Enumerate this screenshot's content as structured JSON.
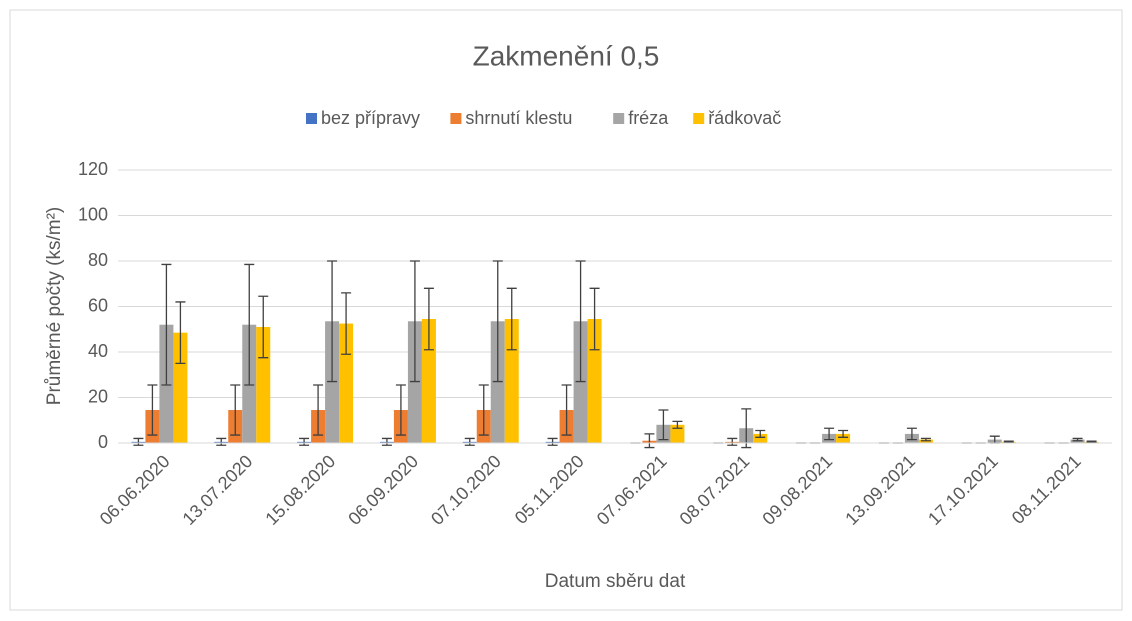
{
  "chart_data": {
    "type": "bar",
    "title": "Zakmenění 0,5",
    "x_label": "Datum sběru dat",
    "y_label": "Průměrné počty (ks/m²)",
    "categories": [
      "06.06.2020",
      "13.07.2020",
      "15.08.2020",
      "06.09.2020",
      "07.10.2020",
      "05.11.2020",
      "07.06.2021",
      "08.07.2021",
      "09.08.2021",
      "13.09.2021",
      "17.10.2021",
      "08.11.2021"
    ],
    "series": [
      {
        "name": "bez přípravy",
        "color": "#4472c4",
        "values": [
          0.5,
          0.5,
          0.5,
          0.5,
          0.5,
          0.5,
          0,
          0,
          0,
          0,
          0,
          0
        ],
        "errors": [
          1.5,
          1.5,
          1.5,
          1.5,
          1.5,
          1.5,
          0,
          0,
          0,
          0,
          0,
          0
        ]
      },
      {
        "name": "shrnutí klestu",
        "color": "#ed7d31",
        "values": [
          14.5,
          14.5,
          14.5,
          14.5,
          14.5,
          14.5,
          1,
          0.5,
          0,
          0,
          0,
          0
        ],
        "errors": [
          11,
          11,
          11,
          11,
          11,
          11,
          3,
          1.5,
          0,
          0,
          0,
          0
        ]
      },
      {
        "name": "fréza",
        "color": "#a5a5a5",
        "values": [
          52,
          52,
          53.5,
          53.5,
          53.5,
          53.5,
          8,
          6.5,
          4,
          4,
          1.5,
          1.5
        ],
        "errors": [
          26.5,
          26.5,
          26.5,
          26.5,
          26.5,
          26.5,
          6.5,
          8.5,
          2.5,
          2.5,
          1.5,
          0.5
        ]
      },
      {
        "name": "řádkovač",
        "color": "#ffc000",
        "values": [
          48.5,
          51,
          52.5,
          54.5,
          54.5,
          54.5,
          8,
          4,
          4,
          1.5,
          0.5,
          0.5
        ],
        "errors": [
          13.5,
          13.5,
          13.5,
          13.5,
          13.5,
          13.5,
          1.5,
          1.5,
          1.5,
          0.5,
          0.3,
          0.3
        ]
      }
    ],
    "ylim": [
      0,
      120
    ],
    "yticks": [
      0,
      20,
      40,
      60,
      80,
      100,
      120
    ],
    "grid": true,
    "legend": "top"
  }
}
